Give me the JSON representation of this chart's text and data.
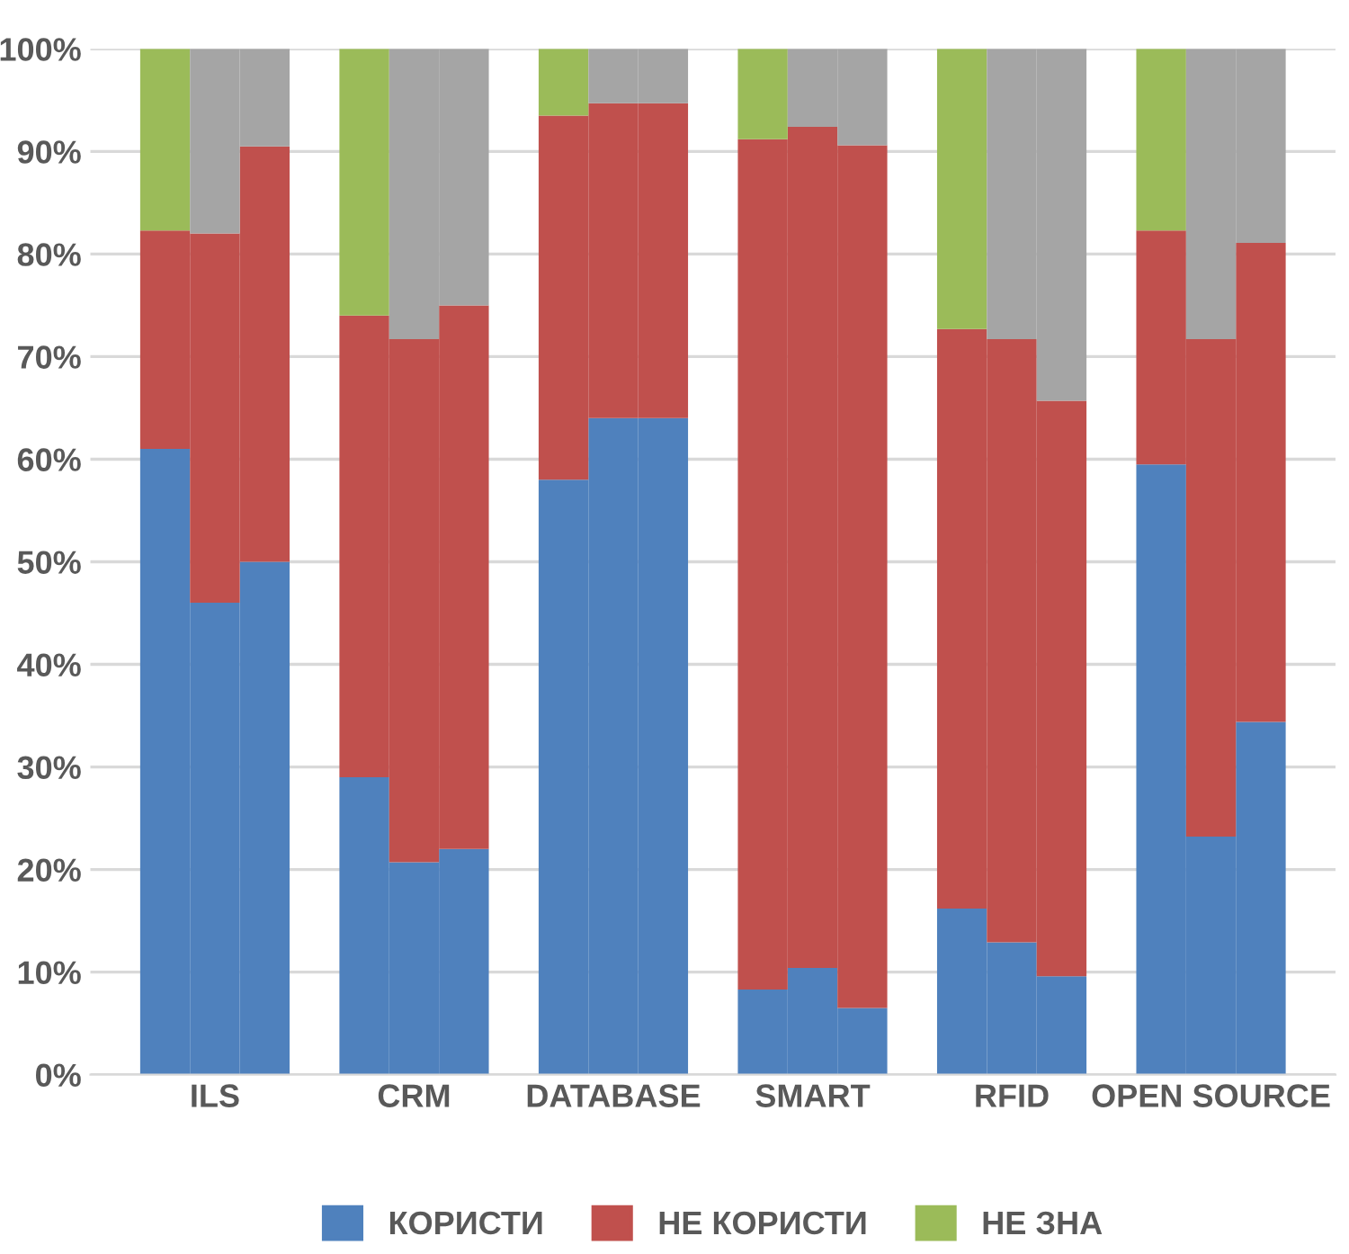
{
  "chart_data": {
    "type": "bar",
    "stacked": true,
    "categories": [
      null,
      "ILS",
      null,
      null,
      "CRM",
      null,
      null,
      "DATABASE",
      null,
      null,
      "SMART",
      null,
      null,
      "RFID",
      null,
      null,
      "OPEN SOURCE",
      null
    ],
    "series": [
      {
        "name": "КОРИСТИ",
        "color": "#4f81bd",
        "values": [
          61,
          46,
          50,
          29,
          20.7,
          22,
          58,
          64,
          64,
          8.3,
          10.4,
          6.5,
          16.2,
          12.9,
          9.6,
          59.5,
          23.2,
          34.4
        ]
      },
      {
        "name": "НЕ КОРИСТИ",
        "color": "#c0504d",
        "values": [
          21.3,
          36,
          40.5,
          45,
          51,
          53,
          35.5,
          30.7,
          30.7,
          82.9,
          82,
          84.1,
          56.5,
          58.8,
          56.1,
          22.8,
          48.5,
          46.7
        ]
      },
      {
        "name": "НЕ ЗНА",
        "color": "#9bbb59",
        "values": [
          17.7,
          null,
          null,
          26,
          null,
          null,
          6.5,
          null,
          null,
          8.8,
          null,
          null,
          27.3,
          null,
          null,
          17.7,
          null,
          null
        ]
      },
      {
        "color": "#a5a5a5",
        "values": [
          null,
          18,
          9.5,
          null,
          28.3,
          25,
          null,
          5.3,
          5.3,
          null,
          7.6,
          9.4,
          null,
          28.3,
          34.3,
          null,
          28.3,
          18.9
        ]
      }
    ],
    "ylim": [
      0,
      100
    ],
    "yticks": [
      {
        "value": 0,
        "label": "0%"
      },
      {
        "value": 10,
        "label": "10%"
      },
      {
        "value": 20,
        "label": "20%"
      },
      {
        "value": 30,
        "label": "30%"
      },
      {
        "value": 40,
        "label": "40%"
      },
      {
        "value": 50,
        "label": "50%"
      },
      {
        "value": 60,
        "label": "60%"
      },
      {
        "value": 70,
        "label": "70%"
      },
      {
        "value": 80,
        "label": "80%"
      },
      {
        "value": 90,
        "label": "90%"
      },
      {
        "value": 100,
        "label": "100%"
      }
    ],
    "grid": "y",
    "legend": "bottom"
  }
}
